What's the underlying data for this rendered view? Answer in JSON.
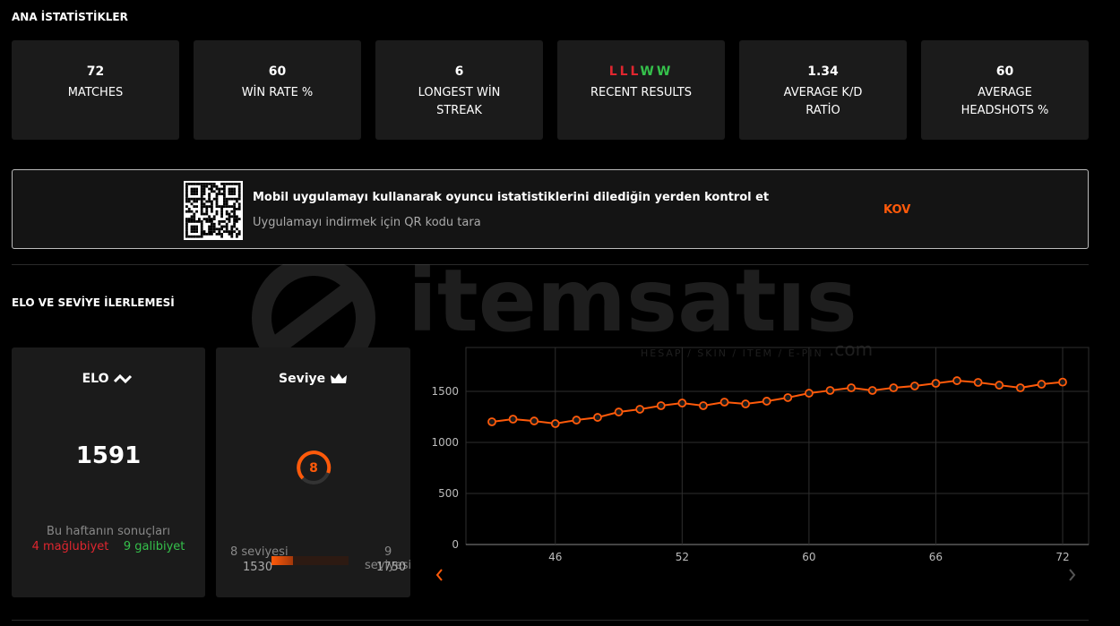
{
  "section_title": "ANA İSTATİSTİKLER",
  "stats": [
    {
      "value": "72",
      "label": "MATCHES"
    },
    {
      "value": "60",
      "label": "WİN RATE %"
    },
    {
      "value": "6",
      "label": "LONGEST WİN STREAK"
    },
    {
      "results": [
        {
          "text": "L",
          "color": "#e0262f"
        },
        {
          "text": "L",
          "color": "#e0262f"
        },
        {
          "text": "L",
          "color": "#e0262f"
        },
        {
          "text": "W",
          "color": "#35c14b"
        },
        {
          "text": "W",
          "color": "#35c14b"
        }
      ],
      "label": "RECENT RESULTS"
    },
    {
      "value": "1.34",
      "label": "AVERAGE K/D RATİO"
    },
    {
      "value": "60",
      "label": "AVERAGE HEADSHOTS %"
    }
  ],
  "banner": {
    "title": "Mobil uygulamayı kullanarak oyuncu istatistiklerini dilediğin yerden kontrol et",
    "subtitle": "Uygulamayı indirmek için QR kodu tara",
    "button": "KOV"
  },
  "elo_section_title": "ELO VE SEVİYE İLERLEMESİ",
  "elo_card": {
    "title": "ELO",
    "value": "1591",
    "week_label": "Bu haftanın sonuçları",
    "losses": "4 mağlubiyet",
    "wins": "9 galibiyet"
  },
  "level_card": {
    "title": "Seviye",
    "level": "8",
    "from_label": "8 seviyesi",
    "from_elo": 1530,
    "to_label": "9 seviyesi",
    "to_elo": 1750,
    "current_elo": 1591
  },
  "watermark": {
    "brand": "itemsatıs",
    "tagline": "HESAP / SKIN / ITEM / E-PIN",
    "suffix": ".com"
  },
  "elo_chart": {
    "type": "line",
    "color": "#ff5a0a",
    "categories": [
      null,
      null,
      null,
      "46",
      null,
      null,
      null,
      null,
      null,
      "52",
      null,
      null,
      null,
      null,
      null,
      "60",
      null,
      null,
      null,
      null,
      null,
      "66",
      null,
      null,
      null,
      null,
      null,
      "72"
    ],
    "values": [
      1202,
      1228,
      1210,
      1184,
      1219,
      1245,
      1298,
      1325,
      1360,
      1386,
      1360,
      1395,
      1377,
      1404,
      1439,
      1482,
      1509,
      1535,
      1509,
      1535,
      1553,
      1579,
      1605,
      1588,
      1561,
      1535,
      1570,
      1591
    ],
    "ylim": [
      0,
      1930
    ],
    "yticks": [
      0,
      500,
      1000,
      1500
    ],
    "grid": true
  }
}
